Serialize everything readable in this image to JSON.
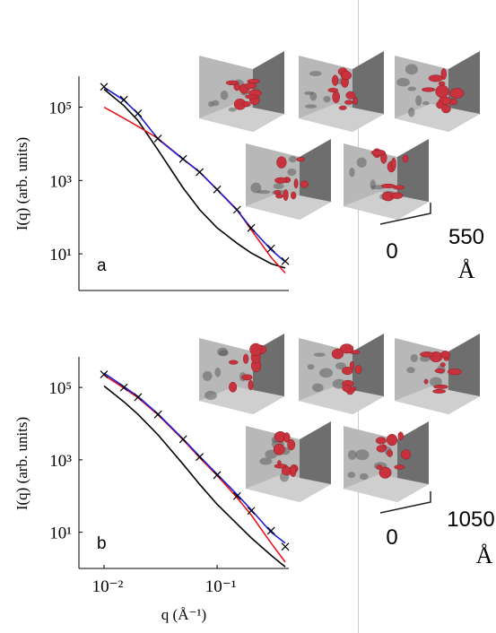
{
  "chart_data": [
    {
      "type": "line",
      "panel_label": "a",
      "ylabel": "I(q) (arb. units)",
      "xscale": "log",
      "yscale": "log",
      "xlim": [
        0.006,
        0.43
      ],
      "ylim": [
        1,
        700000
      ],
      "yticks": [
        {
          "value": 10,
          "label": "10¹"
        },
        {
          "value": 1000,
          "label": "10³"
        },
        {
          "value": 100000,
          "label": "10⁵"
        }
      ],
      "x": [
        0.01,
        0.015,
        0.02,
        0.03,
        0.05,
        0.07,
        0.1,
        0.15,
        0.2,
        0.3,
        0.4
      ],
      "series": [
        {
          "color": "#000000",
          "values": [
            310000,
            110000,
            43000,
            6800,
            630,
            160,
            51,
            19.5,
            10.5,
            5.4,
            4.1
          ]
        },
        {
          "color": "#e8141c",
          "values": [
            100000,
            50000,
            30000,
            14000,
            3900,
            1700,
            570,
            160,
            45,
            8,
            3
          ]
        },
        {
          "color": "#1b1bd6",
          "values": [
            350000,
            155000,
            66000,
            13500,
            3800,
            1700,
            560,
            155,
            50,
            13,
            6
          ]
        },
        {
          "color": "#000000",
          "marker": "x",
          "values": [
            360000,
            160000,
            68000,
            14000,
            3900,
            1700,
            570,
            160,
            51,
            14,
            6.3
          ]
        }
      ]
    },
    {
      "type": "line",
      "panel_label": "b",
      "ylabel": "I(q) (arb. units)",
      "xlabel": "q (Å⁻¹)",
      "xscale": "log",
      "yscale": "log",
      "xlim": [
        0.006,
        0.43
      ],
      "ylim": [
        1,
        700000
      ],
      "xticks": [
        {
          "value": 0.01,
          "label": "10⁻²"
        },
        {
          "value": 0.1,
          "label": "10⁻¹"
        }
      ],
      "yticks": [
        {
          "value": 10,
          "label": "10¹"
        },
        {
          "value": 1000,
          "label": "10³"
        },
        {
          "value": 100000,
          "label": "10⁵"
        }
      ],
      "x": [
        0.01,
        0.015,
        0.02,
        0.03,
        0.05,
        0.07,
        0.1,
        0.15,
        0.2,
        0.3,
        0.4
      ],
      "series": [
        {
          "color": "#000000",
          "values": [
            110000,
            40000,
            18000,
            4900,
            760,
            210,
            59,
            17,
            7,
            2.3,
            1.1
          ]
        },
        {
          "color": "#e8141c",
          "values": [
            220000,
            95000,
            52000,
            17500,
            3600,
            1150,
            370,
            90,
            30,
            5,
            1.5
          ]
        },
        {
          "color": "#1b1bd6",
          "values": [
            250000,
            105000,
            56000,
            18500,
            3800,
            1250,
            400,
            110,
            42,
            10,
            5
          ]
        },
        {
          "color": "#000000",
          "marker": "x",
          "values": [
            230000,
            100000,
            54000,
            18000,
            3700,
            1200,
            380,
            100,
            39,
            11,
            4
          ]
        }
      ]
    }
  ],
  "scale_bars": [
    {
      "start": "0",
      "end": "550",
      "unit": "Å"
    },
    {
      "start": "0",
      "end": "1050",
      "unit": "Å"
    }
  ]
}
